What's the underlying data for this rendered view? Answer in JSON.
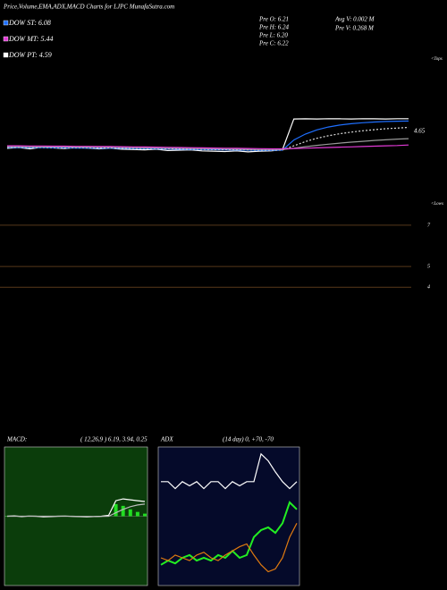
{
  "chart_data": [
    {
      "type": "line",
      "title": "Price,Volume,EMA,ADX,MACD Charts for LJPC MunafaSutra.com",
      "annotations": [
        "DOW ST: 6.08",
        "DOW MT: 5.44",
        "DOW PT: 4.59",
        "Pre  O: 6.21",
        "Pre  H: 6.24",
        "Pre  L: 6.20",
        "Pre  C: 6.22",
        "Avg V: 0.002  M",
        "Pre  V: 0.268  M",
        "4.65",
        "<Tops",
        "<Lows"
      ],
      "ylim": [
        1.3,
        9.3
      ],
      "series": [
        {
          "color": "#ffffff",
          "values": [
            4.45,
            4.5,
            4.42,
            4.52,
            4.48,
            4.44,
            4.5,
            4.47,
            4.42,
            4.46,
            4.4,
            4.38,
            4.36,
            4.4,
            4.32,
            4.34,
            4.36,
            4.3,
            4.28,
            4.26,
            4.3,
            4.24,
            4.28,
            4.3,
            4.36,
            6.2,
            6.21,
            6.2,
            6.22,
            6.21,
            6.2,
            6.22,
            6.21,
            6.2,
            6.22,
            6.22
          ]
        },
        {
          "color": "#1e6fff",
          "values": [
            4.5,
            4.5,
            4.49,
            4.49,
            4.48,
            4.48,
            4.47,
            4.47,
            4.46,
            4.46,
            4.45,
            4.44,
            4.43,
            4.42,
            4.41,
            4.4,
            4.39,
            4.38,
            4.37,
            4.36,
            4.35,
            4.34,
            4.33,
            4.33,
            4.34,
            4.95,
            5.3,
            5.55,
            5.72,
            5.84,
            5.92,
            5.98,
            6.02,
            6.05,
            6.07,
            6.08
          ]
        },
        {
          "color": "#dddddd",
          "dashed": true,
          "values": [
            4.52,
            4.52,
            4.51,
            4.51,
            4.5,
            4.5,
            4.49,
            4.49,
            4.48,
            4.48,
            4.47,
            4.46,
            4.45,
            4.44,
            4.43,
            4.42,
            4.41,
            4.4,
            4.39,
            4.38,
            4.37,
            4.36,
            4.35,
            4.35,
            4.35,
            4.6,
            4.85,
            5.05,
            5.2,
            5.32,
            5.42,
            5.5,
            5.56,
            5.62,
            5.66,
            5.7
          ]
        },
        {
          "color": "#999999",
          "values": [
            4.55,
            4.55,
            4.54,
            4.54,
            4.53,
            4.53,
            4.52,
            4.52,
            4.51,
            4.51,
            4.5,
            4.49,
            4.48,
            4.47,
            4.46,
            4.45,
            4.44,
            4.43,
            4.42,
            4.41,
            4.4,
            4.39,
            4.38,
            4.38,
            4.38,
            4.45,
            4.55,
            4.63,
            4.7,
            4.76,
            4.82,
            4.87,
            4.92,
            4.96,
            5.0,
            5.03
          ]
        },
        {
          "color": "#e23ad6",
          "values": [
            4.6,
            4.6,
            4.59,
            4.59,
            4.58,
            4.58,
            4.57,
            4.57,
            4.56,
            4.56,
            4.55,
            4.54,
            4.53,
            4.52,
            4.51,
            4.5,
            4.49,
            4.48,
            4.47,
            4.46,
            4.45,
            4.44,
            4.43,
            4.42,
            4.42,
            4.44,
            4.46,
            4.48,
            4.5,
            4.52,
            4.54,
            4.56,
            4.58,
            4.6,
            4.62,
            4.65
          ]
        }
      ]
    },
    {
      "type": "line",
      "ylim": [
        3.4,
        7.3
      ],
      "yticks": [
        7,
        5,
        4
      ],
      "grid": true,
      "series": []
    },
    {
      "type": "line",
      "title": "MACD:",
      "subtitle": "( 12,26,9 ) 6.19, 3.94, 0.25",
      "ylim": [
        -4,
        4
      ],
      "background": "#0b3d0b",
      "series": [
        {
          "color": "#22dd22",
          "bars": true,
          "values": [
            0,
            0.02,
            -0.02,
            0.01,
            0,
            -0.03,
            -0.02,
            0,
            0.01,
            -0.01,
            -0.01,
            -0.02,
            0,
            0.01,
            0.05,
            0.7,
            0.6,
            0.4,
            0.25,
            0.15
          ]
        },
        {
          "color": "#ffffff",
          "values": [
            0,
            0.02,
            -0.02,
            0.01,
            0,
            -0.03,
            -0.02,
            0,
            0.01,
            -0.01,
            -0.02,
            -0.03,
            -0.02,
            0,
            0.05,
            0.9,
            1.0,
            0.95,
            0.9,
            0.85
          ]
        },
        {
          "color": "#bbbbbb",
          "values": [
            0,
            0,
            0,
            0,
            0,
            0,
            0,
            0,
            0,
            0,
            -0.01,
            -0.01,
            -0.02,
            -0.01,
            0,
            0.2,
            0.4,
            0.55,
            0.65,
            0.7
          ]
        }
      ]
    },
    {
      "type": "line",
      "title": "ADX",
      "subtitle": "(14  day) 0, +70, -70",
      "ylim": [
        0,
        100
      ],
      "background": "#050a2a",
      "series": [
        {
          "color": "#ffffff",
          "values": [
            75,
            75,
            70,
            75,
            72,
            75,
            70,
            75,
            75,
            70,
            75,
            72,
            75,
            75,
            95,
            90,
            82,
            75,
            70,
            75
          ]
        },
        {
          "color": "#22ee22",
          "values": [
            15,
            18,
            16,
            20,
            22,
            18,
            20,
            18,
            22,
            20,
            25,
            20,
            22,
            35,
            40,
            42,
            38,
            45,
            60,
            55
          ]
        },
        {
          "color": "#e07a10",
          "values": [
            20,
            18,
            22,
            20,
            18,
            22,
            24,
            20,
            18,
            22,
            25,
            28,
            30,
            22,
            15,
            10,
            12,
            20,
            35,
            45
          ]
        }
      ]
    }
  ]
}
